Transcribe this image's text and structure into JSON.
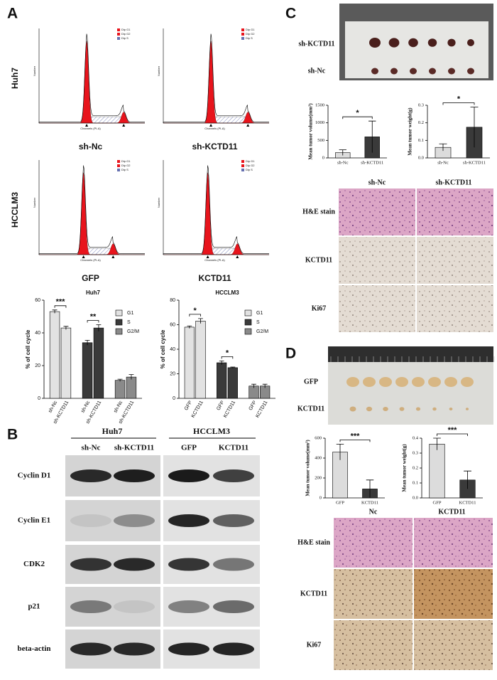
{
  "panel_labels": [
    "A",
    "B",
    "C",
    "D"
  ],
  "flow": {
    "cell_lines": [
      "Huh7",
      "HCCLM3"
    ],
    "conditions": [
      "sh-Nc",
      "sh-KCTD11",
      "GFP",
      "KCTD11"
    ],
    "legend": [
      "Dip G1",
      "Dip G2",
      "Dip S"
    ],
    "x_label": "Channels (PI-A)",
    "y_label": "Number"
  },
  "chart_data": [
    {
      "type": "grouped_bar",
      "title": "Huh7",
      "y_label": "% of cell cycle",
      "categories": [
        "sh-Nc",
        "sh-KCTD11"
      ],
      "series": [
        {
          "name": "G1",
          "color": "#e2e2e2",
          "values": [
            53,
            43
          ],
          "errors": [
            1,
            1
          ]
        },
        {
          "name": "S",
          "color": "#3a3a3a",
          "values": [
            34,
            43
          ],
          "errors": [
            1.5,
            2
          ]
        },
        {
          "name": "G2/M",
          "color": "#8a8a8a",
          "values": [
            11,
            13
          ],
          "errors": [
            0.7,
            1.5
          ]
        }
      ],
      "ylim": [
        0,
        60
      ],
      "yticks": [
        0,
        20,
        40,
        60
      ],
      "significance": [
        "***",
        "**"
      ]
    },
    {
      "type": "grouped_bar",
      "title": "HCCLM3",
      "y_label": "% of cell cycle",
      "categories": [
        "GFP",
        "KCTD11"
      ],
      "series": [
        {
          "name": "G1",
          "color": "#e2e2e2",
          "values": [
            58,
            63
          ],
          "errors": [
            1,
            2
          ]
        },
        {
          "name": "S",
          "color": "#3a3a3a",
          "values": [
            29,
            25
          ],
          "errors": [
            1.5,
            0.5
          ]
        },
        {
          "name": "G2/M",
          "color": "#8a8a8a",
          "values": [
            10,
            10
          ],
          "errors": [
            1.5,
            1.5
          ]
        }
      ],
      "ylim": [
        0,
        80
      ],
      "yticks": [
        0,
        20,
        40,
        60,
        80
      ],
      "significance": [
        "*",
        "*"
      ]
    },
    {
      "type": "bar",
      "y_label": "Mean tumor volume(mm³)",
      "categories": [
        "sh-Nc",
        "sh-KCTD11"
      ],
      "values": [
        150,
        600
      ],
      "errors": [
        80,
        450
      ],
      "colors": [
        "#dcdcdc",
        "#3a3a3a"
      ],
      "ylim": [
        0,
        1500
      ],
      "yticks": [
        0,
        500,
        1000,
        1500
      ],
      "significance": [
        "*"
      ]
    },
    {
      "type": "bar",
      "y_label": "Mean tumor weight(g)",
      "categories": [
        "sh-Nc",
        "sh-KCTD11"
      ],
      "values": [
        0.06,
        0.175
      ],
      "errors": [
        0.02,
        0.115
      ],
      "colors": [
        "#dcdcdc",
        "#3a3a3a"
      ],
      "ylim": [
        0,
        0.3
      ],
      "yticks": [
        {
          "value": 0,
          "label": "0.0"
        },
        0.1,
        0.2,
        0.3
      ],
      "significance": [
        "*"
      ]
    },
    {
      "type": "bar",
      "y_label": "Mean tumor volume(mm³)",
      "categories": [
        "GFP",
        "KCTD11"
      ],
      "values": [
        460,
        90
      ],
      "errors": [
        80,
        90
      ],
      "colors": [
        "#dcdcdc",
        "#3a3a3a"
      ],
      "ylim": [
        0,
        600
      ],
      "yticks": [
        0,
        200,
        400,
        600
      ],
      "significance": [
        "***"
      ]
    },
    {
      "type": "bar",
      "y_label": "Mean tumor weight(g)",
      "categories": [
        "GFP",
        "KCTD11"
      ],
      "values": [
        0.36,
        0.12
      ],
      "errors": [
        0.04,
        0.06
      ],
      "colors": [
        "#dcdcdc",
        "#3a3a3a"
      ],
      "ylim": [
        0,
        0.4
      ],
      "yticks": [
        {
          "value": 0,
          "label": "0.0"
        },
        0.1,
        0.2,
        0.3,
        0.4
      ],
      "significance": [
        "***"
      ]
    }
  ],
  "western": {
    "cell_lines": [
      "Huh7",
      "HCCLM3"
    ],
    "conditions": [
      "sh-Nc",
      "sh-KCTD11",
      "GFP",
      "KCTD11"
    ],
    "proteins": [
      "Cyclin D1",
      "Cyclin E1",
      "CDK2",
      "p21",
      "beta-actin"
    ]
  },
  "tumor_c": {
    "groups": [
      "sh-KCTD11",
      "sh-Nc"
    ]
  },
  "histology_c": {
    "columns": [
      "sh-Nc",
      "sh-KCTD11"
    ],
    "rows": [
      "H&E stain",
      "KCTD11",
      "Ki67"
    ]
  },
  "tumor_d": {
    "groups": [
      "GFP",
      "KCTD11"
    ]
  },
  "histology_d": {
    "columns": [
      "Nc",
      "KCTD11"
    ],
    "rows": [
      "H&E stain",
      "KCTD11",
      "Ki67"
    ]
  }
}
